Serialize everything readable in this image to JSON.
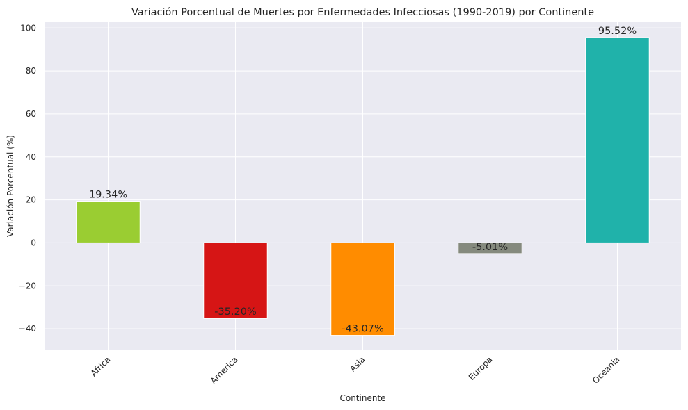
{
  "chart_data": {
    "type": "bar",
    "title": "Variación Porcentual de Muertes por Enfermedades Infecciosas (1990-2019) por Continente",
    "xlabel": "Continente",
    "ylabel": "Variación Porcentual (%)",
    "categories": [
      "Africa",
      "America",
      "Asia",
      "Europa",
      "Oceania"
    ],
    "values": [
      19.34,
      -35.2,
      -43.07,
      -5.01,
      95.52
    ],
    "data_labels": [
      "19.34%",
      "-35.20%",
      "-43.07%",
      "-5.01%",
      "95.52%"
    ],
    "colors": [
      "#9acd32",
      "#d61515",
      "#ff8c00",
      "#858a7e",
      "#20b2aa"
    ],
    "yticks": [
      -40,
      -20,
      0,
      20,
      40,
      60,
      80,
      100
    ],
    "ytick_labels": [
      "−40",
      "−20",
      "0",
      "20",
      "40",
      "60",
      "80",
      "100"
    ],
    "ylim": [
      -50,
      103
    ],
    "grid": true,
    "background": "#eaeaf2",
    "grid_color": "#ffffff"
  }
}
